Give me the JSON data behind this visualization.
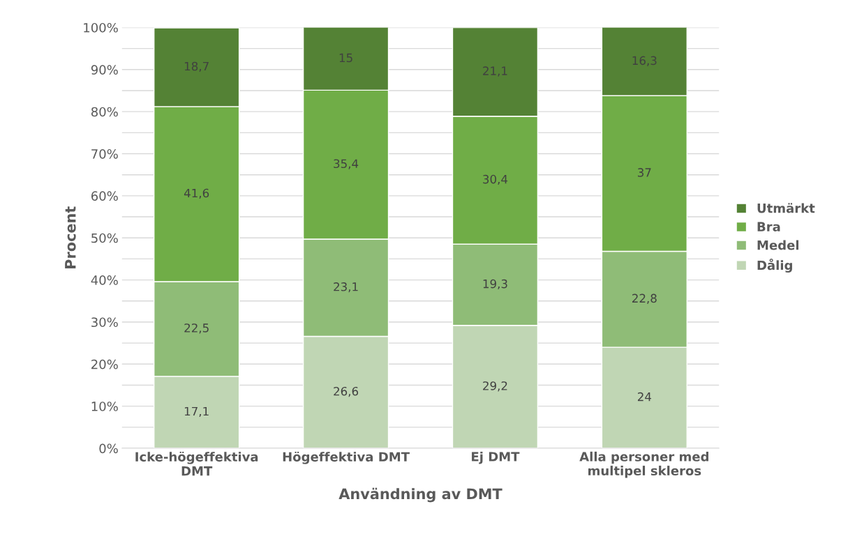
{
  "chart_data": {
    "type": "bar",
    "stacked": true,
    "xlabel": "Användning av DMT",
    "ylabel": "Procent",
    "categories": [
      "Icke-högeffektiva\nDMT",
      "Högeffektiva DMT",
      "Ej DMT",
      "Alla personer med\nmultipel skleros"
    ],
    "series": [
      {
        "name": "Dålig",
        "color": "#c0d6b4",
        "values": [
          17.1,
          26.6,
          29.2,
          24
        ],
        "value_labels": [
          "17,1",
          "26,6",
          "29,2",
          "24"
        ]
      },
      {
        "name": "Medel",
        "color": "#8fbc77",
        "values": [
          22.5,
          23.1,
          19.3,
          22.8
        ],
        "value_labels": [
          "22,5",
          "23,1",
          "19,3",
          "22,8"
        ]
      },
      {
        "name": "Bra",
        "color": "#70ad47",
        "values": [
          41.6,
          35.4,
          30.4,
          37
        ],
        "value_labels": [
          "41,6",
          "35,4",
          "30,4",
          "37"
        ]
      },
      {
        "name": "Utmärkt",
        "color": "#548235",
        "values": [
          18.7,
          15,
          21.1,
          16.3
        ],
        "value_labels": [
          "18,7",
          "15",
          "21,1",
          "16,3"
        ]
      }
    ],
    "ylim": [
      0,
      100
    ],
    "yticks": [
      {
        "value": 0,
        "label": "0%"
      },
      {
        "value": 5,
        "label": null
      },
      {
        "value": 10,
        "label": "10%"
      },
      {
        "value": 15,
        "label": null
      },
      {
        "value": 20,
        "label": "20%"
      },
      {
        "value": 25,
        "label": null
      },
      {
        "value": 30,
        "label": "30%"
      },
      {
        "value": 35,
        "label": null
      },
      {
        "value": 40,
        "label": "40%"
      },
      {
        "value": 45,
        "label": null
      },
      {
        "value": 50,
        "label": "50%"
      },
      {
        "value": 55,
        "label": null
      },
      {
        "value": 60,
        "label": "60%"
      },
      {
        "value": 65,
        "label": null
      },
      {
        "value": 70,
        "label": "70%"
      },
      {
        "value": 75,
        "label": null
      },
      {
        "value": 80,
        "label": "80%"
      },
      {
        "value": 85,
        "label": null
      },
      {
        "value": 90,
        "label": "90%"
      },
      {
        "value": 95,
        "label": null
      },
      {
        "value": 100,
        "label": "100%"
      }
    ],
    "grid": "y",
    "legend": "right"
  }
}
